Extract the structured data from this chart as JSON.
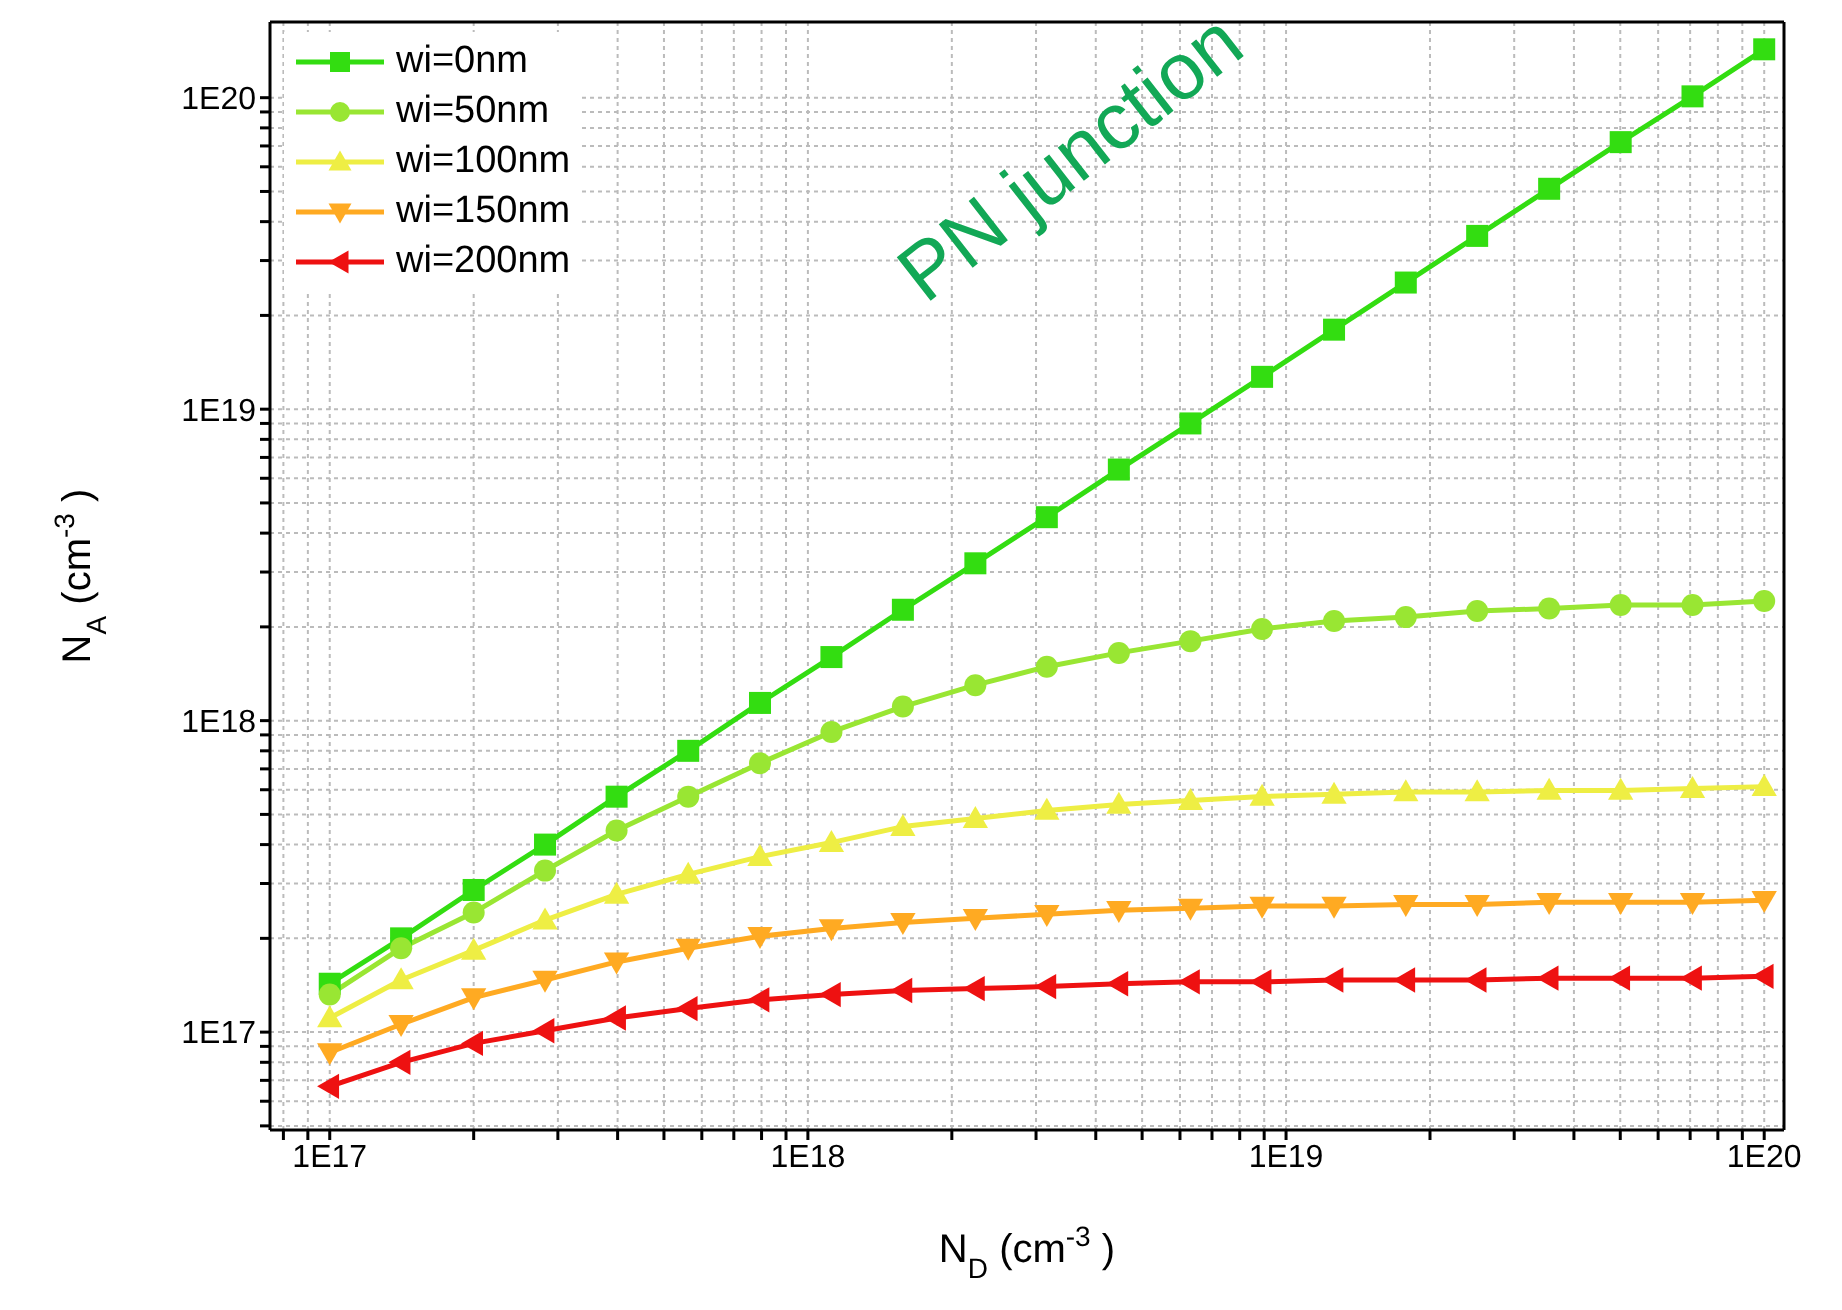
{
  "chart_data": {
    "type": "line",
    "xlabel": "N$_{D}$ (cm$^{-3}$)",
    "ylabel": "N$_{A}$ (cm$^{-3}$)",
    "annotations": [
      "PN junction"
    ],
    "log": "xy",
    "grid": true,
    "legend": "top left",
    "x": [
      1e+17,
      1.41e+17,
      2e+17,
      2.82e+17,
      3.98e+17,
      5.62e+17,
      7.94e+17,
      1.12e+18,
      1.58e+18,
      2.24e+18,
      3.16e+18,
      4.47e+18,
      6.31e+18,
      8.91e+18,
      1.26e+19,
      1.78e+19,
      2.51e+19,
      3.55e+19,
      5.01e+19,
      7.08e+19,
      1e+20
    ],
    "xlim": [
      7.5e+16,
      1.1e+20
    ],
    "ylim": [
      4.85e+16,
      1.75e+20
    ],
    "xticks": [
      {
        "value": 8e+16,
        "label": null
      },
      {
        "value": 9e+16,
        "label": null
      },
      {
        "value": 1e+17,
        "label": "1E17"
      },
      {
        "value": 2e+17,
        "label": null
      },
      {
        "value": 3e+17,
        "label": null
      },
      {
        "value": 4e+17,
        "label": null
      },
      {
        "value": 5e+17,
        "label": null
      },
      {
        "value": 6e+17,
        "label": null
      },
      {
        "value": 7e+17,
        "label": null
      },
      {
        "value": 8e+17,
        "label": null
      },
      {
        "value": 9e+17,
        "label": null
      },
      {
        "value": 1e+18,
        "label": "1E18"
      },
      {
        "value": 2e+18,
        "label": null
      },
      {
        "value": 3e+18,
        "label": null
      },
      {
        "value": 4e+18,
        "label": null
      },
      {
        "value": 5e+18,
        "label": null
      },
      {
        "value": 6e+18,
        "label": null
      },
      {
        "value": 7e+18,
        "label": null
      },
      {
        "value": 8e+18,
        "label": null
      },
      {
        "value": 9e+18,
        "label": null
      },
      {
        "value": 1e+19,
        "label": "1E19"
      },
      {
        "value": 2e+19,
        "label": null
      },
      {
        "value": 3e+19,
        "label": null
      },
      {
        "value": 4e+19,
        "label": null
      },
      {
        "value": 5e+19,
        "label": null
      },
      {
        "value": 6e+19,
        "label": null
      },
      {
        "value": 7e+19,
        "label": null
      },
      {
        "value": 8e+19,
        "label": null
      },
      {
        "value": 9e+19,
        "label": null
      },
      {
        "value": 1e+20,
        "label": "1E20"
      }
    ],
    "yticks": [
      {
        "value": 5e+16,
        "label": null
      },
      {
        "value": 6e+16,
        "label": null
      },
      {
        "value": 7e+16,
        "label": null
      },
      {
        "value": 8e+16,
        "label": null
      },
      {
        "value": 9e+16,
        "label": null
      },
      {
        "value": 1e+17,
        "label": "1E17"
      },
      {
        "value": 2e+17,
        "label": null
      },
      {
        "value": 3e+17,
        "label": null
      },
      {
        "value": 4e+17,
        "label": null
      },
      {
        "value": 5e+17,
        "label": null
      },
      {
        "value": 6e+17,
        "label": null
      },
      {
        "value": 7e+17,
        "label": null
      },
      {
        "value": 8e+17,
        "label": null
      },
      {
        "value": 9e+17,
        "label": null
      },
      {
        "value": 1e+18,
        "label": "1E18"
      },
      {
        "value": 2e+18,
        "label": null
      },
      {
        "value": 3e+18,
        "label": null
      },
      {
        "value": 4e+18,
        "label": null
      },
      {
        "value": 5e+18,
        "label": null
      },
      {
        "value": 6e+18,
        "label": null
      },
      {
        "value": 7e+18,
        "label": null
      },
      {
        "value": 8e+18,
        "label": null
      },
      {
        "value": 9e+18,
        "label": null
      },
      {
        "value": 1e+19,
        "label": "1E19"
      },
      {
        "value": 2e+19,
        "label": null
      },
      {
        "value": 3e+19,
        "label": null
      },
      {
        "value": 4e+19,
        "label": null
      },
      {
        "value": 5e+19,
        "label": null
      },
      {
        "value": 6e+19,
        "label": null
      },
      {
        "value": 7e+19,
        "label": null
      },
      {
        "value": 8e+19,
        "label": null
      },
      {
        "value": 9e+19,
        "label": null
      },
      {
        "value": 1e+20,
        "label": "1E20"
      }
    ],
    "series": [
      {
        "name": "wi=0nm",
        "color": "#33dd11",
        "marker": "square",
        "values": [
          1.43e+17,
          2e+17,
          2.86e+17,
          4e+17,
          5.7e+17,
          8e+17,
          1.14e+18,
          1.6e+18,
          2.27e+18,
          3.2e+18,
          4.5e+18,
          6.4e+18,
          9e+18,
          1.27e+19,
          1.8e+19,
          2.55e+19,
          3.6e+19,
          5.1e+19,
          7.2e+19,
          1.01e+20,
          1.43e+20
        ]
      },
      {
        "name": "wi=50nm",
        "color": "#99e633",
        "marker": "circle",
        "values": [
          1.32e+17,
          1.86e+17,
          2.42e+17,
          3.3e+17,
          4.44e+17,
          5.7e+17,
          7.3e+17,
          9.2e+17,
          1.11e+18,
          1.3e+18,
          1.49e+18,
          1.65e+18,
          1.8e+18,
          1.97e+18,
          2.09e+18,
          2.15e+18,
          2.25e+18,
          2.29e+18,
          2.35e+18,
          2.35e+18,
          2.42e+18
        ]
      },
      {
        "name": "wi=100nm",
        "color": "#eeee44",
        "marker": "triangle",
        "values": [
          1.11e+17,
          1.47e+17,
          1.83e+17,
          2.29e+17,
          2.77e+17,
          3.21e+17,
          3.66e+17,
          4.06e+17,
          4.57e+17,
          4.85e+17,
          5.15e+17,
          5.38e+17,
          5.54e+17,
          5.71e+17,
          5.8e+17,
          5.9e+17,
          5.9e+17,
          5.97e+17,
          5.97e+17,
          6.05e+17,
          6.14e+17
        ]
      },
      {
        "name": "wi=150nm",
        "color": "#ffaa22",
        "marker": "triangle-down",
        "values": [
          8.6e+16,
          1.06e+17,
          1.29e+17,
          1.47e+17,
          1.68e+17,
          1.86e+17,
          2.03e+17,
          2.15e+17,
          2.25e+17,
          2.32e+17,
          2.39e+17,
          2.46e+17,
          2.5e+17,
          2.54e+17,
          2.54e+17,
          2.57e+17,
          2.57e+17,
          2.61e+17,
          2.61e+17,
          2.61e+17,
          2.65e+17
        ]
      },
      {
        "name": "wi=200nm",
        "color": "#ee1111",
        "marker": "triangle-left",
        "values": [
          6.7e+16,
          8e+16,
          9.2e+16,
          1.01e+17,
          1.11e+17,
          1.19e+17,
          1.27e+17,
          1.32e+17,
          1.36e+17,
          1.38e+17,
          1.4e+17,
          1.43e+17,
          1.45e+17,
          1.45e+17,
          1.47e+17,
          1.47e+17,
          1.47e+17,
          1.49e+17,
          1.49e+17,
          1.49e+17,
          1.51e+17
        ]
      }
    ]
  }
}
